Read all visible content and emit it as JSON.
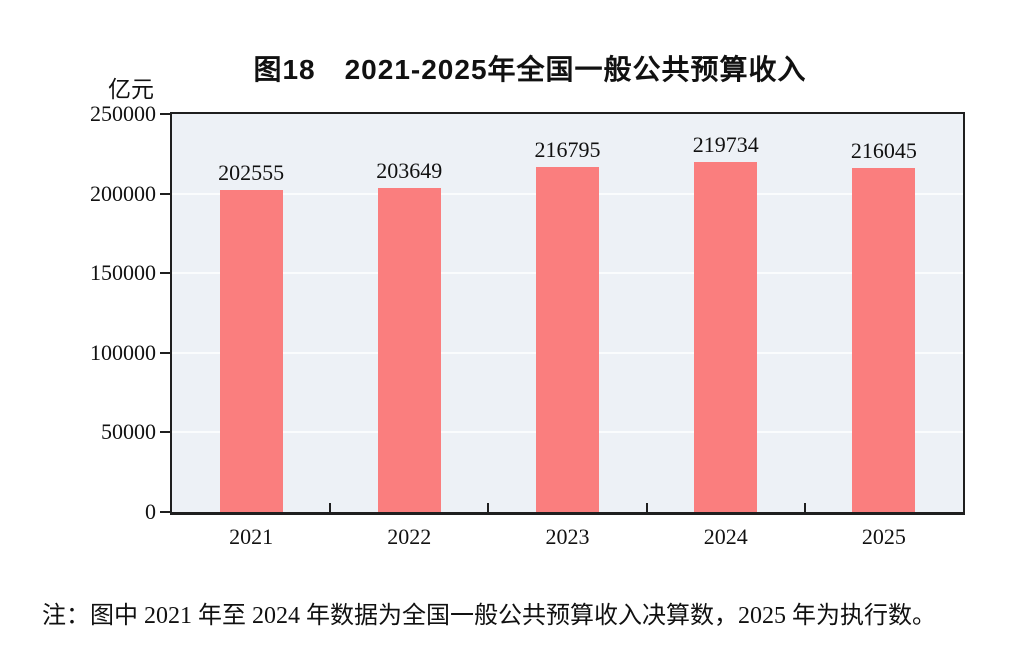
{
  "figure": {
    "title": "图18　2021-2025年全国一般公共预算收入",
    "unit_label": "亿元",
    "note": "注：图中 2021 年至 2024 年数据为全国一般公共预算收入决算数，2025 年为执行数。"
  },
  "chart_data": {
    "type": "bar",
    "title": "图18　2021-2025年全国一般公共预算收入",
    "categories": [
      "2021",
      "2022",
      "2023",
      "2024",
      "2025"
    ],
    "values": [
      202555,
      203649,
      216795,
      219734,
      216045
    ],
    "data_labels": [
      "202555",
      "203649",
      "216795",
      "219734",
      "216045"
    ],
    "xlabel": "",
    "ylabel": "亿元",
    "ylim": [
      0,
      250000
    ],
    "yticks": [
      0,
      50000,
      100000,
      150000,
      200000,
      250000
    ],
    "grid": true,
    "gridlines_at": [
      50000,
      100000,
      150000,
      200000
    ],
    "legend": "none",
    "note": "注：图中 2021 年至 2024 年数据为全国一般公共预算收入决算数，2025 年为执行数。",
    "colors": {
      "bar": "#fa7e7e",
      "plot_background": "#edf1f6",
      "gridline": "#fafcfd",
      "axis": "#1f1f1f",
      "text": "#111111"
    }
  }
}
